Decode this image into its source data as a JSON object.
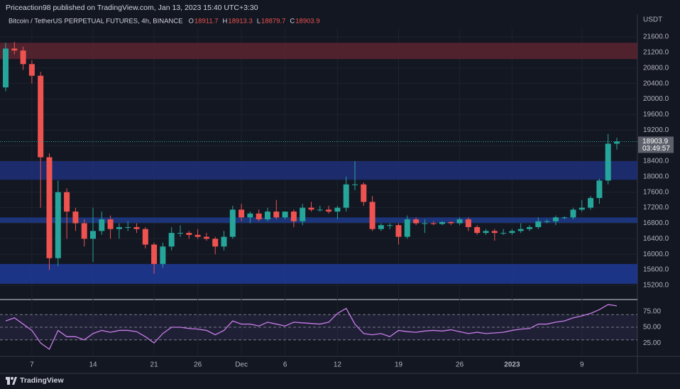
{
  "header": {
    "publisher": "Priceaction98 published on TradingView.com, Jan 13, 2023 15:40 UTC+3:30"
  },
  "footer": {
    "brand": "TradingView"
  },
  "chart_data": [
    {
      "type": "candlestick",
      "title": "Bitcoin / TetherUS PERPETUAL FUTURES, 4h, BINANCE",
      "currency": "USDT",
      "legend": [
        {
          "label": "O",
          "value": 18911.7
        },
        {
          "label": "H",
          "value": 18913.3
        },
        {
          "label": "L",
          "value": 18879.7
        },
        {
          "label": "C",
          "value": 18903.9
        }
      ],
      "last_price": {
        "value": 18903.9,
        "countdown": "03:49:57"
      },
      "categories": [
        null,
        null,
        null,
        "7",
        null,
        null,
        null,
        null,
        null,
        null,
        "14",
        null,
        null,
        null,
        null,
        null,
        null,
        "21",
        null,
        null,
        null,
        null,
        "26",
        null,
        null,
        null,
        null,
        "Dec",
        null,
        null,
        null,
        null,
        "6",
        null,
        null,
        null,
        null,
        null,
        "12",
        null,
        null,
        null,
        null,
        null,
        null,
        "19",
        null,
        null,
        null,
        null,
        null,
        null,
        "26",
        null,
        null,
        null,
        null,
        null,
        "2023",
        null,
        null,
        null,
        null,
        null,
        null,
        null,
        "9",
        null,
        null,
        null,
        null
      ],
      "open": [
        20300,
        21300,
        21250,
        20900,
        20600,
        18500,
        15900,
        17600,
        17100,
        16800,
        16400,
        16600,
        16900,
        16650,
        16700,
        16700,
        16650,
        16250,
        15750,
        16200,
        16550,
        16550,
        16500,
        16450,
        16400,
        16200,
        16450,
        17150,
        16950,
        17050,
        16900,
        17100,
        16950,
        17100,
        16850,
        17200,
        17150,
        17150,
        17100,
        17200,
        17800,
        17800,
        17350,
        16650,
        16750,
        16750,
        16450,
        16900,
        16800,
        16800,
        16780,
        16830,
        16800,
        16900,
        16700,
        16550,
        16600,
        16550,
        16550,
        16600,
        16650,
        16700,
        16850,
        16850,
        16950,
        16950,
        17150,
        17200,
        17450,
        17900,
        18850
      ],
      "high": [
        21450,
        21470,
        21350,
        21000,
        20700,
        18600,
        17900,
        17700,
        17200,
        16900,
        17200,
        17100,
        17000,
        16800,
        16850,
        16800,
        16700,
        16300,
        16300,
        16700,
        16750,
        16600,
        16650,
        16550,
        16450,
        16600,
        17250,
        17300,
        17100,
        17150,
        17200,
        17400,
        17100,
        17150,
        17300,
        17350,
        17250,
        17250,
        17250,
        18000,
        18400,
        17850,
        17500,
        16800,
        16800,
        16800,
        17000,
        16950,
        16900,
        16850,
        16850,
        16850,
        16950,
        16950,
        16750,
        16650,
        16650,
        16650,
        16650,
        16800,
        16750,
        16950,
        16900,
        17000,
        16980,
        17200,
        17400,
        17500,
        17950,
        19100,
        19000
      ],
      "low": [
        20200,
        21150,
        20750,
        20400,
        17200,
        15600,
        15700,
        16400,
        16600,
        16200,
        15800,
        16500,
        16400,
        16400,
        16600,
        16550,
        16150,
        15500,
        15650,
        16100,
        16450,
        16400,
        16400,
        16350,
        16000,
        16100,
        16400,
        16850,
        16800,
        16850,
        16850,
        16900,
        16900,
        16700,
        16750,
        17100,
        17100,
        17050,
        16900,
        17100,
        17650,
        17250,
        16600,
        16600,
        16650,
        16250,
        16400,
        16750,
        16550,
        16750,
        16750,
        16750,
        16750,
        16600,
        16500,
        16500,
        16350,
        16500,
        16500,
        16550,
        16600,
        16650,
        16800,
        16750,
        16900,
        16900,
        17100,
        17150,
        17300,
        17800,
        18700
      ],
      "close": [
        21300,
        21250,
        20900,
        20600,
        18500,
        15900,
        17600,
        17100,
        16800,
        16400,
        16600,
        16900,
        16650,
        16700,
        16700,
        16650,
        16250,
        15750,
        16200,
        16550,
        16550,
        16500,
        16450,
        16400,
        16200,
        16450,
        17150,
        16950,
        17050,
        16900,
        17100,
        16950,
        17100,
        16850,
        17200,
        17150,
        17150,
        17100,
        17200,
        17800,
        17800,
        17350,
        16650,
        16750,
        16750,
        16450,
        16900,
        16800,
        16800,
        16780,
        16830,
        16800,
        16900,
        16700,
        16550,
        16600,
        16550,
        16550,
        16600,
        16650,
        16700,
        16850,
        16850,
        16950,
        16950,
        17150,
        17200,
        17450,
        17900,
        18850,
        18903.9
      ],
      "up_color": "#26a69a",
      "down_color": "#ef5350",
      "zones": [
        {
          "from": 21030,
          "to": 21450,
          "color": "#5c2530"
        },
        {
          "from": 17920,
          "to": 18400,
          "color": "#1e2f78"
        },
        {
          "from": 16810,
          "to": 16950,
          "color": "#1e3a8a"
        },
        {
          "from": 15240,
          "to": 15750,
          "color": "#1f3a96"
        }
      ],
      "ylim": [
        14870,
        21820
      ],
      "yticks": [
        {
          "value": 15200,
          "label": "15200.0"
        },
        {
          "value": 15600,
          "label": "15600.0"
        },
        {
          "value": 16000,
          "label": "16000.0"
        },
        {
          "value": 16400,
          "label": "16400.0"
        },
        {
          "value": 16800,
          "label": "16800.0"
        },
        {
          "value": 17200,
          "label": "17200.0"
        },
        {
          "value": 17600,
          "label": "17600.0"
        },
        {
          "value": 18000,
          "label": "18000.0"
        },
        {
          "value": 18400,
          "label": "18400.0"
        },
        {
          "value": 18800,
          "label": "18800.0"
        },
        {
          "value": 19200,
          "label": "19200.0"
        },
        {
          "value": 19600,
          "label": "19600.0"
        },
        {
          "value": 20000,
          "label": "20000.0"
        },
        {
          "value": 20400,
          "label": "20400.0"
        },
        {
          "value": 20800,
          "label": "20800.0"
        },
        {
          "value": 21200,
          "label": "21200.0"
        },
        {
          "value": 21600,
          "label": "21600.0"
        }
      ],
      "grid": true
    },
    {
      "type": "line",
      "values": [
        60,
        65,
        55,
        45,
        25,
        15,
        45,
        35,
        35,
        30,
        40,
        45,
        42,
        45,
        45,
        43,
        35,
        25,
        40,
        50,
        50,
        48,
        47,
        45,
        38,
        45,
        60,
        55,
        55,
        52,
        58,
        55,
        52,
        58,
        57,
        56,
        55,
        58,
        72,
        80,
        55,
        40,
        38,
        40,
        35,
        45,
        43,
        42,
        44,
        45,
        44,
        46,
        43,
        40,
        42,
        40,
        41,
        42,
        45,
        47,
        48,
        55,
        55,
        58,
        60,
        65,
        68,
        72,
        78,
        86,
        84
      ],
      "color": "#c77de8",
      "levels": [
        30,
        50,
        70
      ],
      "band": [
        30,
        70
      ],
      "ylim": [
        6,
        94
      ],
      "yticks": [
        {
          "value": 25,
          "label": "25.00"
        },
        {
          "value": 50,
          "label": "50.00"
        },
        {
          "value": 75,
          "label": "75.00"
        }
      ]
    }
  ]
}
